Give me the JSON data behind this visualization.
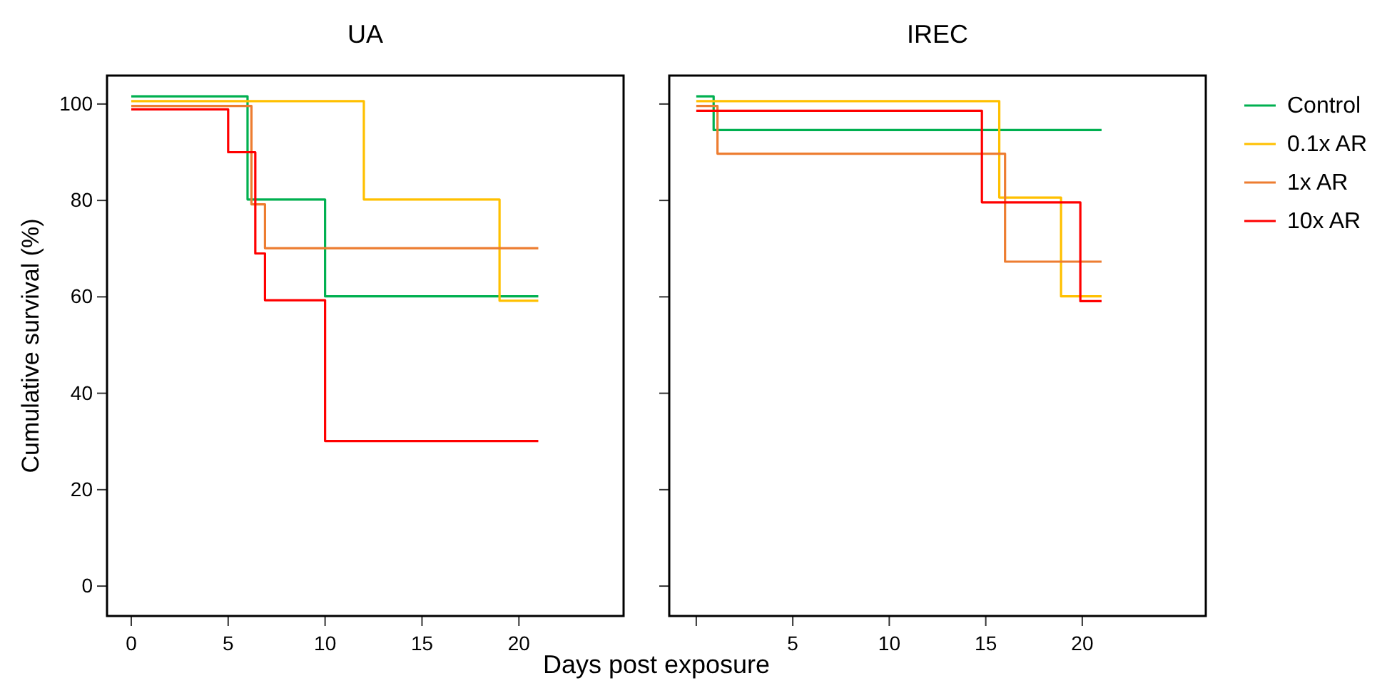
{
  "chart_data": [
    {
      "type": "step",
      "title": "UA",
      "xlabel": "Days post exposure",
      "ylabel": "Cumulative survival (%)",
      "xlim": [
        -1.25,
        25.4
      ],
      "xticks": [
        0,
        5,
        10,
        15,
        20
      ],
      "ylim": [
        -6.2,
        105.9
      ],
      "yticks": [
        0,
        20,
        40,
        60,
        80,
        100
      ],
      "grid": false,
      "legend": false,
      "series": [
        {
          "color": "#00b050",
          "x": [
            0,
            6,
            10,
            21
          ],
          "values": [
            101.6,
            80.2,
            60.1,
            60.1
          ]
        },
        {
          "color": "#ffc000",
          "x": [
            0,
            12,
            19,
            21
          ],
          "values": [
            100.6,
            80.2,
            59.2,
            59.2
          ]
        },
        {
          "color": "#ed7d31",
          "x": [
            0,
            6.2,
            6.9,
            21
          ],
          "values": [
            99.6,
            79.2,
            70.1,
            70.1
          ]
        },
        {
          "color": "#ff0000",
          "x": [
            0,
            5,
            6.4,
            6.9,
            10,
            21
          ],
          "values": [
            98.9,
            90,
            69,
            59.3,
            30.1,
            30.1
          ]
        }
      ]
    },
    {
      "type": "step",
      "title": "IREC",
      "xlim": [
        -1.4,
        26.4
      ],
      "xticks": [
        {
          "value": 0,
          "label": null
        },
        5,
        10,
        15,
        20
      ],
      "ylim": [
        -6.2,
        105.9
      ],
      "yticks": [
        0,
        20,
        40,
        60,
        80,
        100
      ],
      "tick_labels": "x",
      "grid": false,
      "legend": "right",
      "series": [
        {
          "name": "Control",
          "color": "#00b050",
          "x": [
            0,
            0.9,
            21
          ],
          "values": [
            101.6,
            94.6,
            94.6
          ]
        },
        {
          "name": "0.1x AR",
          "color": "#ffc000",
          "x": [
            0,
            15.7,
            18.9,
            21
          ],
          "values": [
            100.6,
            80.6,
            60.1,
            60.1
          ]
        },
        {
          "name": "1x AR",
          "color": "#ed7d31",
          "x": [
            0,
            1.1,
            16,
            21
          ],
          "values": [
            99.6,
            89.7,
            67.3,
            67.3
          ]
        },
        {
          "name": "10x AR",
          "color": "#ff0000",
          "x": [
            0,
            14.8,
            19.9,
            21
          ],
          "values": [
            98.6,
            79.6,
            59.1,
            59.1
          ]
        }
      ]
    }
  ]
}
